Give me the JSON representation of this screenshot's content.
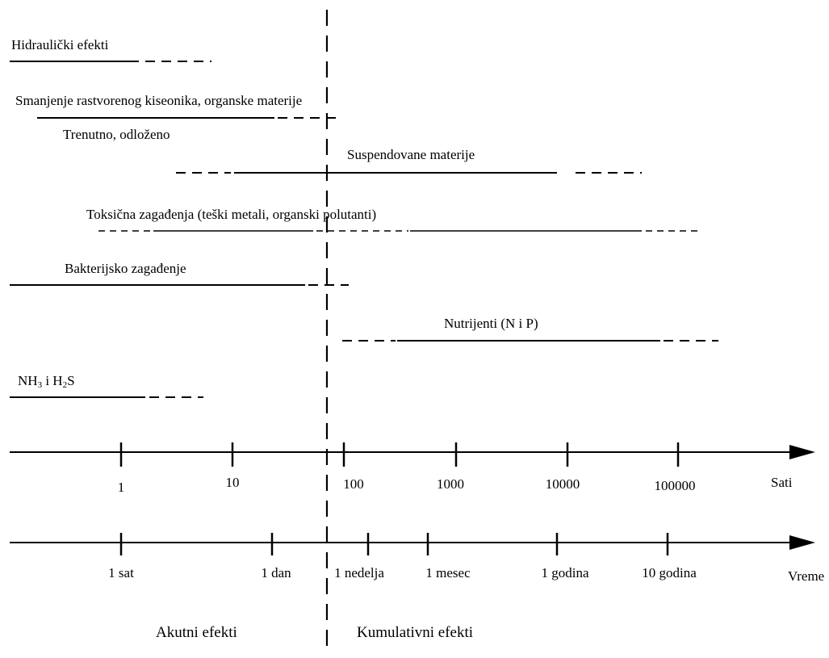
{
  "effects": {
    "hydraulic": "Hidraulički efekti",
    "oxygen": "Smanjenje rastvorenog kiseonika, organske materije",
    "immediate": "Trenutno, odloženo",
    "suspended": "Suspendovane materije",
    "toxic": "Toksična zagađenja (teški metali, organski polutanti)",
    "bacterial": "Bakterijsko zagađenje",
    "nutrients": "Nutrijenti (N i P)",
    "gases": {
      "nh": "NH",
      "nh_sub": "3",
      "mid": " i H",
      "h2s_sub": "2",
      "s": "S"
    }
  },
  "axis_hours": {
    "ticks": [
      "1",
      "10",
      "100",
      "1000",
      "10000",
      "100000"
    ],
    "label": "Sati"
  },
  "axis_time": {
    "ticks": [
      "1 sat",
      "1 dan",
      "1 nedelja",
      "1 mesec",
      "1 godina",
      "10 godina"
    ],
    "label": "Vreme"
  },
  "zones": {
    "acute": "Akutni efekti",
    "cumulative": "Kumulativni efekti"
  }
}
